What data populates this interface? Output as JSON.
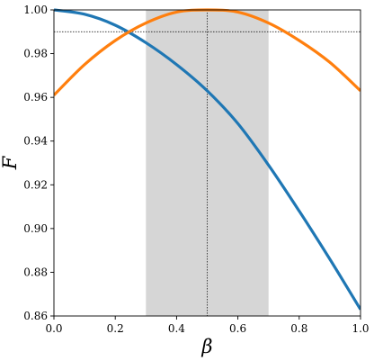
{
  "chart_data": {
    "type": "line",
    "xlabel": "β",
    "ylabel": "F",
    "xlim": [
      0.0,
      1.0
    ],
    "ylim": [
      0.86,
      1.0
    ],
    "x_ticks": [
      "0.0",
      "0.2",
      "0.4",
      "0.6",
      "0.8",
      "1.0"
    ],
    "y_ticks": [
      "0.86",
      "0.88",
      "0.90",
      "0.92",
      "0.94",
      "0.96",
      "0.98",
      "1.00"
    ],
    "grid": false,
    "shaded_band": {
      "x_from": 0.3,
      "x_to": 0.7,
      "color": "#d6d6d6"
    },
    "reference_lines": {
      "vertical_x": 0.5,
      "horizontal_y": 0.99
    },
    "series": [
      {
        "color": "#1f77b4",
        "x": [
          0.0,
          0.1,
          0.2,
          0.3,
          0.4,
          0.5,
          0.6,
          0.7,
          0.8,
          0.9,
          1.0
        ],
        "y": [
          1.0,
          0.998,
          0.993,
          0.985,
          0.975,
          0.963,
          0.948,
          0.929,
          0.908,
          0.886,
          0.863
        ]
      },
      {
        "color": "#ff7f0e",
        "x": [
          0.0,
          0.1,
          0.2,
          0.3,
          0.4,
          0.5,
          0.6,
          0.7,
          0.8,
          0.9,
          1.0
        ],
        "y": [
          0.961,
          0.975,
          0.986,
          0.994,
          0.999,
          1.0,
          0.999,
          0.994,
          0.986,
          0.976,
          0.963
        ]
      }
    ]
  }
}
